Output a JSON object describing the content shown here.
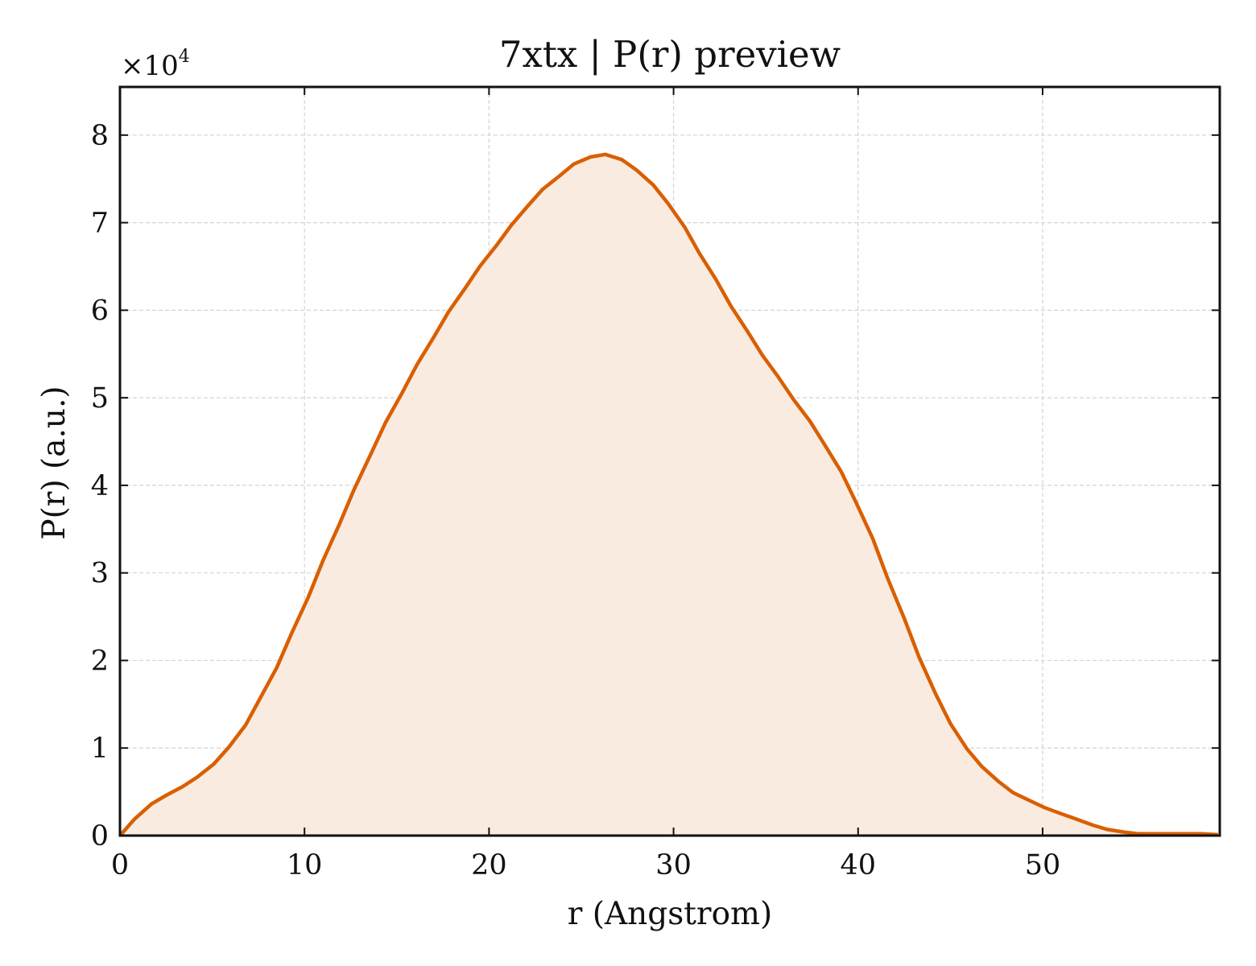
{
  "chart_data": {
    "type": "area",
    "title": "7xtx | P(r) preview",
    "xlabel": "r (Angstrom)",
    "ylabel": "P(r) (a.u.)",
    "offset_label": {
      "base": "×10",
      "exponent": "4"
    },
    "xlim": [
      0,
      59.6
    ],
    "ylim": [
      0,
      8.55
    ],
    "y_scale_multiplier": 10000,
    "x_ticks": [
      0,
      10,
      20,
      30,
      40,
      50
    ],
    "x_tick_labels": [
      "0",
      "10",
      "20",
      "30",
      "40",
      "50"
    ],
    "y_ticks": [
      0,
      1,
      2,
      3,
      4,
      5,
      6,
      7,
      8
    ],
    "y_tick_labels": [
      "0",
      "1",
      "2",
      "3",
      "4",
      "5",
      "6",
      "7",
      "8"
    ],
    "grid": true,
    "colors": {
      "line": "#d95f02",
      "fill": "#f9ebe0"
    },
    "series": [
      {
        "x": [
          0,
          0.8,
          1.7,
          2.5,
          3.4,
          4.2,
          5.1,
          5.9,
          6.8,
          7.6,
          8.5,
          9.3,
          10.2,
          11.0,
          11.9,
          12.7,
          13.6,
          14.4,
          15.3,
          16.1,
          17.0,
          17.8,
          18.7,
          19.5,
          20.4,
          21.2,
          22.1,
          22.9,
          23.8,
          24.6,
          25.5,
          26.3,
          27.2,
          28.0,
          28.9,
          29.7,
          30.6,
          31.4,
          32.3,
          33.1,
          34.0,
          34.8,
          35.7,
          36.5,
          37.4,
          38.2,
          39.1,
          39.9,
          40.8,
          41.6,
          42.5,
          43.3,
          44.2,
          45.0,
          45.9,
          46.7,
          47.6,
          48.4,
          49.3,
          50.1,
          51.0,
          51.8,
          52.7,
          53.5,
          54.4,
          55.2,
          56.1,
          56.9,
          57.8,
          58.6,
          59.5
        ],
        "values": [
          0.0,
          0.19,
          0.36,
          0.46,
          0.56,
          0.67,
          0.82,
          1.01,
          1.26,
          1.57,
          1.92,
          2.31,
          2.72,
          3.14,
          3.56,
          3.96,
          4.36,
          4.72,
          5.06,
          5.38,
          5.69,
          5.98,
          6.25,
          6.5,
          6.74,
          6.97,
          7.19,
          7.38,
          7.53,
          7.67,
          7.75,
          7.78,
          7.72,
          7.6,
          7.43,
          7.22,
          6.95,
          6.65,
          6.35,
          6.05,
          5.76,
          5.49,
          5.23,
          4.98,
          4.73,
          4.46,
          4.15,
          3.8,
          3.39,
          2.94,
          2.48,
          2.04,
          1.62,
          1.28,
          0.99,
          0.79,
          0.62,
          0.49,
          0.4,
          0.32,
          0.25,
          0.19,
          0.12,
          0.07,
          0.04,
          0.02,
          0.02,
          0.02,
          0.02,
          0.02,
          0.01
        ]
      }
    ]
  }
}
